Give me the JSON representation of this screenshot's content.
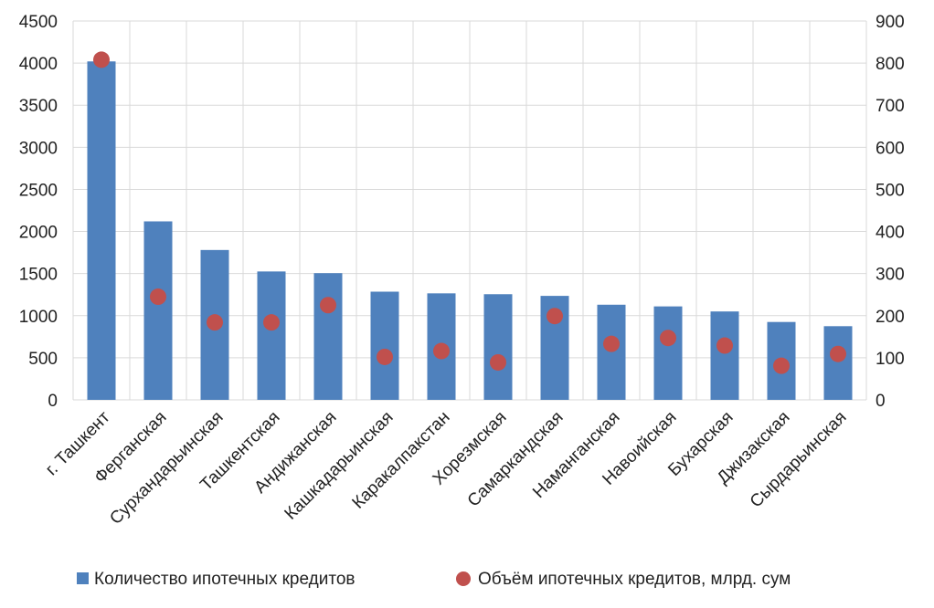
{
  "chart_data": {
    "type": "bar",
    "categories": [
      "г. Ташкент",
      "Ферганская",
      "Сурхандарьинская",
      "Ташкентская",
      "Андижанская",
      "Кашкадарьинская",
      "Каракалпакстан",
      "Хорезмская",
      "Самаркандская",
      "Наманганская",
      "Навоийская",
      "Бухарская",
      "Джизакская",
      "Сырдарьинская"
    ],
    "series": [
      {
        "name": "Количество ипотечных кредитов",
        "type": "bar",
        "axis": "left",
        "color": "#4f81bd",
        "values": [
          4020,
          2120,
          1780,
          1525,
          1505,
          1285,
          1265,
          1255,
          1235,
          1130,
          1110,
          1050,
          925,
          875
        ]
      },
      {
        "name": "Объём ипотечных кредитов, млрд. сум",
        "type": "scatter",
        "axis": "right",
        "color": "#c0504d",
        "values": [
          808,
          245,
          184,
          184,
          225,
          102,
          116,
          89,
          199,
          133,
          147,
          129,
          81,
          109
        ]
      }
    ],
    "y_left": {
      "ylim": [
        0,
        4500
      ],
      "ticks": [
        "0",
        "500",
        "1000",
        "1500",
        "2000",
        "2500",
        "3000",
        "3500",
        "4000",
        "4500"
      ]
    },
    "y_right": {
      "ylim": [
        0,
        900
      ],
      "ticks": [
        "0",
        "100",
        "200",
        "300",
        "400",
        "500",
        "600",
        "700",
        "800",
        "900"
      ]
    },
    "grid": true,
    "legend": "bottom"
  }
}
